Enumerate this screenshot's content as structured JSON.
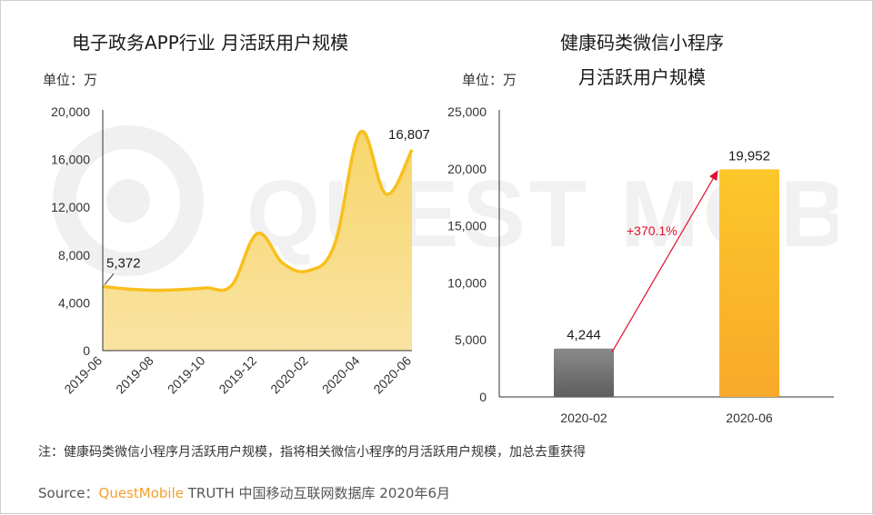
{
  "colors": {
    "accent": "#f8c12c",
    "area_fill": "#f6d57a",
    "bar_gray": "#7b7b7b",
    "bar_orange": "#fbb829",
    "arrow_red": "#e0102b",
    "axis": "#333333"
  },
  "watermark_text": "QUEST MOBILE",
  "left_chart": {
    "title": "电子政务APP行业 月活跃用户规模",
    "unit": "单位：万",
    "start_label": "5,372",
    "end_label": "16,807"
  },
  "right_chart": {
    "title_line1": "健康码类微信小程序",
    "title_line2": "月活跃用户规模",
    "unit": "单位：万",
    "growth_label": "+370.1%"
  },
  "note": "注：健康码类微信小程序月活跃用户规模，指将相关微信小程序的月活跃用户规模，加总去重获得",
  "source": {
    "prefix": "Source：",
    "brand": "QuestMobile",
    "suffix": " TRUTH 中国移动互联网数据库 2020年6月"
  },
  "chart_data": [
    {
      "type": "area",
      "x": [
        "2019-06",
        "2019-07",
        "2019-08",
        "2019-09",
        "2019-10",
        "2019-11",
        "2019-12",
        "2020-01",
        "2020-02",
        "2020-03",
        "2020-04",
        "2020-05",
        "2020-06"
      ],
      "x_tick_labels": [
        "2019-06",
        "2019-08",
        "2019-10",
        "2019-12",
        "2020-02",
        "2020-04",
        "2020-06"
      ],
      "values": [
        5372,
        5150,
        5050,
        5100,
        5250,
        5450,
        9800,
        7300,
        6700,
        8900,
        18300,
        13100,
        16807
      ],
      "y_ticks": [
        "0",
        "4,000",
        "8,000",
        "12,000",
        "16,000",
        "20,000"
      ],
      "ylim": [
        0,
        20000
      ],
      "data_labels": {
        "2019-06": "5,372",
        "2020-06": "16,807"
      }
    },
    {
      "type": "bar",
      "categories": [
        "2020-02",
        "2020-06"
      ],
      "values": [
        4244,
        19952
      ],
      "value_labels": [
        "4,244",
        "19,952"
      ],
      "y_ticks": [
        "0",
        "5,000",
        "10,000",
        "15,000",
        "20,000",
        "25,000"
      ],
      "ylim": [
        0,
        25000
      ],
      "annotation": "+370.1%"
    }
  ]
}
